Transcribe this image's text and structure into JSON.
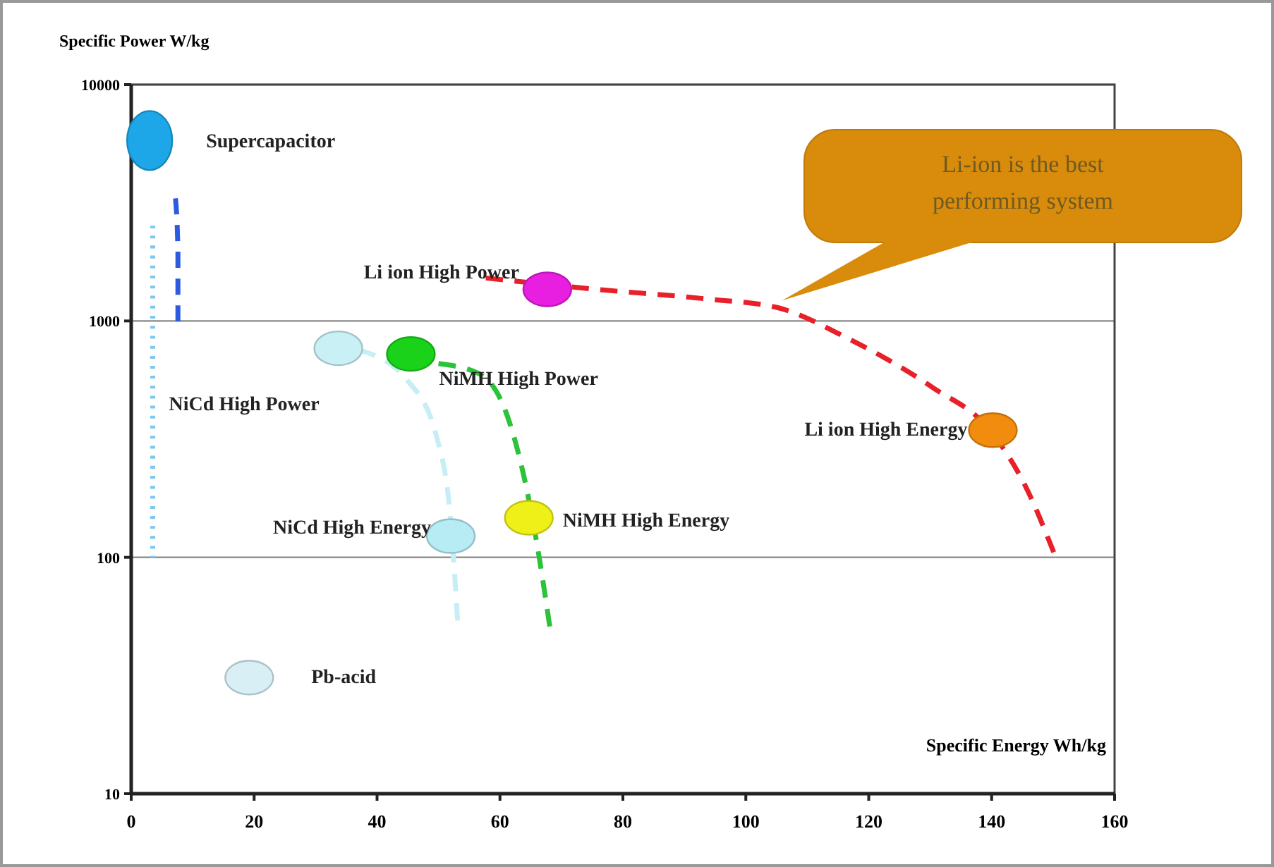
{
  "chart_data": {
    "type": "scatter",
    "xlabel": "Specific Energy Wh/kg",
    "ylabel": "Specific Power W/kg",
    "log": "y",
    "grid": "y",
    "marker": "circle",
    "xlim": [
      0,
      160
    ],
    "xticks": [
      0,
      20,
      40,
      60,
      80,
      100,
      120,
      140,
      160
    ],
    "ylim": [
      10,
      10000
    ],
    "yticks": [
      10,
      100,
      1000,
      10000
    ],
    "annotations": [
      {
        "text": "Li-ion is the best performing system",
        "x": 105,
        "y": 1140
      }
    ],
    "series": [
      {
        "type": "line",
        "line_style": "dotted",
        "marker": "none",
        "color": "#7ec8f0",
        "x": [
          3.5,
          3.5,
          3.5
        ],
        "values": [
          2530,
          600,
          100
        ]
      },
      {
        "type": "line",
        "line_style": "dashed",
        "marker": "none",
        "color": "#2d5be0",
        "x": [
          7.2,
          7.6,
          7.6
        ],
        "values": [
          3300,
          2000,
          995
        ]
      },
      {
        "type": "line",
        "line_style": "dashed",
        "marker": "none",
        "color": "#e8202a",
        "x": [
          57.7,
          75.1,
          93.5,
          105.1,
          116.6,
          130.5,
          139.7,
          145.5,
          150.1
        ],
        "values": [
          1520,
          1365,
          1240,
          1140,
          844,
          521,
          345,
          200,
          105
        ]
      },
      {
        "type": "line",
        "line_style": "dashed",
        "marker": "none",
        "color": "#2cc23a",
        "x": [
          50,
          56.6,
          61.2,
          64.0,
          65.8,
          68.1
        ],
        "values": [
          660,
          598,
          396,
          214,
          123,
          51
        ]
      },
      {
        "type": "line",
        "line_style": "dashed",
        "marker": "none",
        "color": "#c8eef5",
        "x": [
          37,
          45,
          49.7,
          52,
          53.1
        ],
        "values": [
          755,
          558,
          323,
          141,
          54
        ]
      },
      {
        "name": "Supercapacitor",
        "color": "#1ea7e8",
        "x": [
          3
        ],
        "values": [
          5800
        ]
      },
      {
        "name": "Li ion High Power",
        "color": "#e81ee0",
        "x": [
          67.7
        ],
        "values": [
          1360
        ]
      },
      {
        "name": "NiCd High Power",
        "color": "#c8f0f5",
        "x": [
          33.7
        ],
        "values": [
          766
        ]
      },
      {
        "name": "NiMH High Power",
        "color": "#19d219",
        "x": [
          45.5
        ],
        "values": [
          725
        ]
      },
      {
        "name": "Li ion High Energy",
        "color": "#f28c0f",
        "x": [
          140.2
        ],
        "values": [
          345
        ]
      },
      {
        "name": "NiMH High Energy",
        "color": "#f0f019",
        "x": [
          64.7
        ],
        "values": [
          147
        ]
      },
      {
        "name": "NiCd High Energy",
        "color": "#b8ecf5",
        "x": [
          52
        ],
        "values": [
          123
        ]
      },
      {
        "name": "Pb-acid",
        "color": "#d8f0f5",
        "x": [
          19.2
        ],
        "values": [
          31
        ]
      }
    ]
  }
}
